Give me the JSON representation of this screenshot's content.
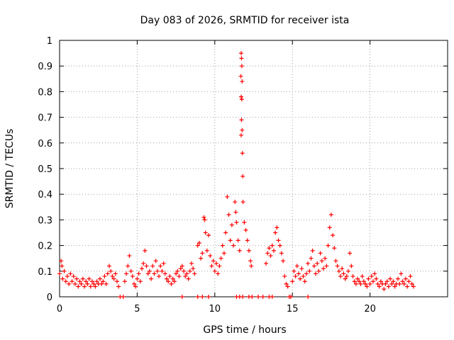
{
  "chart_data": {
    "type": "scatter",
    "title": "Day 083 of 2026, SRMTID for receiver ista",
    "xlabel": "GPS time / hours",
    "ylabel": "SRMTID / TECUs",
    "xlim": [
      0,
      25
    ],
    "ylim": [
      0,
      1
    ],
    "x_ticks": [
      0,
      5,
      10,
      15,
      20
    ],
    "x_tick_labels": [
      "0",
      "5",
      "10",
      "15",
      "20"
    ],
    "y_ticks": [
      0,
      0.1,
      0.2,
      0.3,
      0.4,
      0.5,
      0.6,
      0.7,
      0.8,
      0.9,
      1
    ],
    "y_tick_labels": [
      "0",
      "0.1",
      "0.2",
      "0.3",
      "0.4",
      "0.5",
      "0.6",
      "0.7",
      "0.8",
      "0.9",
      "1"
    ],
    "grid": true,
    "marker": "plus",
    "color": "#ff0000",
    "series": [
      {
        "name": "SRMTID",
        "points": [
          [
            0.0,
            0.09
          ],
          [
            0.1,
            0.14
          ],
          [
            0.15,
            0.12
          ],
          [
            0.2,
            0.07
          ],
          [
            0.3,
            0.1
          ],
          [
            0.4,
            0.06
          ],
          [
            0.5,
            0.08
          ],
          [
            0.6,
            0.05
          ],
          [
            0.7,
            0.09
          ],
          [
            0.8,
            0.06
          ],
          [
            0.9,
            0.08
          ],
          [
            1.0,
            0.05
          ],
          [
            1.1,
            0.07
          ],
          [
            1.2,
            0.04
          ],
          [
            1.3,
            0.06
          ],
          [
            1.4,
            0.05
          ],
          [
            1.5,
            0.07
          ],
          [
            1.6,
            0.04
          ],
          [
            1.7,
            0.06
          ],
          [
            1.8,
            0.05
          ],
          [
            1.9,
            0.07
          ],
          [
            2.0,
            0.04
          ],
          [
            2.1,
            0.06
          ],
          [
            2.2,
            0.05
          ],
          [
            2.3,
            0.04
          ],
          [
            2.4,
            0.06
          ],
          [
            2.5,
            0.05
          ],
          [
            2.6,
            0.07
          ],
          [
            2.7,
            0.05
          ],
          [
            2.8,
            0.06
          ],
          [
            2.9,
            0.08
          ],
          [
            3.0,
            0.05
          ],
          [
            3.1,
            0.09
          ],
          [
            3.2,
            0.12
          ],
          [
            3.3,
            0.1
          ],
          [
            3.4,
            0.08
          ],
          [
            3.5,
            0.07
          ],
          [
            3.6,
            0.09
          ],
          [
            3.7,
            0.06
          ],
          [
            3.8,
            0.04
          ],
          [
            4.2,
            0.06
          ],
          [
            4.3,
            0.09
          ],
          [
            4.4,
            0.12
          ],
          [
            4.5,
            0.16
          ],
          [
            4.6,
            0.1
          ],
          [
            4.7,
            0.08
          ],
          [
            4.8,
            0.05
          ],
          [
            4.9,
            0.04
          ],
          [
            5.0,
            0.07
          ],
          [
            5.1,
            0.09
          ],
          [
            5.2,
            0.06
          ],
          [
            5.3,
            0.11
          ],
          [
            5.4,
            0.13
          ],
          [
            5.5,
            0.18
          ],
          [
            5.6,
            0.12
          ],
          [
            5.7,
            0.09
          ],
          [
            5.8,
            0.1
          ],
          [
            5.9,
            0.07
          ],
          [
            6.0,
            0.12
          ],
          [
            6.1,
            0.09
          ],
          [
            6.2,
            0.14
          ],
          [
            6.3,
            0.1
          ],
          [
            6.4,
            0.08
          ],
          [
            6.5,
            0.12
          ],
          [
            6.6,
            0.1
          ],
          [
            6.7,
            0.13
          ],
          [
            6.8,
            0.09
          ],
          [
            6.9,
            0.07
          ],
          [
            7.0,
            0.06
          ],
          [
            7.1,
            0.08
          ],
          [
            7.2,
            0.05
          ],
          [
            7.3,
            0.07
          ],
          [
            7.4,
            0.06
          ],
          [
            7.5,
            0.09
          ],
          [
            7.6,
            0.1
          ],
          [
            7.7,
            0.08
          ],
          [
            7.8,
            0.11
          ],
          [
            7.9,
            0.12
          ],
          [
            8.0,
            0.1
          ],
          [
            8.1,
            0.08
          ],
          [
            8.2,
            0.09
          ],
          [
            8.3,
            0.07
          ],
          [
            8.4,
            0.1
          ],
          [
            8.5,
            0.13
          ],
          [
            8.6,
            0.11
          ],
          [
            8.7,
            0.09
          ],
          [
            8.9,
            0.2
          ],
          [
            9.0,
            0.21
          ],
          [
            9.1,
            0.15
          ],
          [
            9.2,
            0.17
          ],
          [
            9.3,
            0.31
          ],
          [
            9.35,
            0.3
          ],
          [
            9.4,
            0.25
          ],
          [
            9.5,
            0.18
          ],
          [
            9.6,
            0.24
          ],
          [
            9.7,
            0.16
          ],
          [
            9.8,
            0.12
          ],
          [
            9.9,
            0.14
          ],
          [
            10.0,
            0.1
          ],
          [
            10.1,
            0.13
          ],
          [
            10.2,
            0.09
          ],
          [
            10.3,
            0.12
          ],
          [
            10.4,
            0.15
          ],
          [
            10.5,
            0.2
          ],
          [
            10.6,
            0.17
          ],
          [
            10.7,
            0.25
          ],
          [
            10.8,
            0.39
          ],
          [
            10.9,
            0.32
          ],
          [
            11.0,
            0.22
          ],
          [
            11.1,
            0.28
          ],
          [
            11.2,
            0.2
          ],
          [
            11.3,
            0.37
          ],
          [
            11.35,
            0.33
          ],
          [
            11.4,
            0.29
          ],
          [
            11.5,
            0.22
          ],
          [
            11.6,
            0.18
          ],
          [
            11.7,
            0.95
          ],
          [
            11.72,
            0.93
          ],
          [
            11.74,
            0.9
          ],
          [
            11.68,
            0.86
          ],
          [
            11.76,
            0.84
          ],
          [
            11.7,
            0.78
          ],
          [
            11.74,
            0.77
          ],
          [
            11.72,
            0.69
          ],
          [
            11.76,
            0.65
          ],
          [
            11.7,
            0.63
          ],
          [
            11.78,
            0.56
          ],
          [
            11.8,
            0.47
          ],
          [
            11.82,
            0.37
          ],
          [
            11.9,
            0.29
          ],
          [
            12.0,
            0.26
          ],
          [
            12.1,
            0.22
          ],
          [
            12.2,
            0.18
          ],
          [
            12.3,
            0.14
          ],
          [
            12.35,
            0.12
          ],
          [
            13.3,
            0.13
          ],
          [
            13.4,
            0.17
          ],
          [
            13.5,
            0.19
          ],
          [
            13.6,
            0.16
          ],
          [
            13.7,
            0.2
          ],
          [
            13.8,
            0.18
          ],
          [
            13.9,
            0.25
          ],
          [
            14.0,
            0.27
          ],
          [
            14.1,
            0.22
          ],
          [
            14.2,
            0.2
          ],
          [
            14.3,
            0.17
          ],
          [
            14.4,
            0.14
          ],
          [
            14.5,
            0.08
          ],
          [
            14.6,
            0.05
          ],
          [
            14.7,
            0.04
          ],
          [
            15.0,
            0.06
          ],
          [
            15.1,
            0.1
          ],
          [
            15.2,
            0.08
          ],
          [
            15.3,
            0.12
          ],
          [
            15.4,
            0.09
          ],
          [
            15.5,
            0.07
          ],
          [
            15.6,
            0.11
          ],
          [
            15.7,
            0.08
          ],
          [
            15.8,
            0.06
          ],
          [
            15.9,
            0.09
          ],
          [
            16.0,
            0.13
          ],
          [
            16.1,
            0.1
          ],
          [
            16.2,
            0.15
          ],
          [
            16.3,
            0.18
          ],
          [
            16.4,
            0.12
          ],
          [
            16.5,
            0.09
          ],
          [
            16.6,
            0.13
          ],
          [
            16.7,
            0.1
          ],
          [
            16.8,
            0.17
          ],
          [
            16.9,
            0.14
          ],
          [
            17.0,
            0.11
          ],
          [
            17.1,
            0.15
          ],
          [
            17.2,
            0.12
          ],
          [
            17.3,
            0.2
          ],
          [
            17.4,
            0.27
          ],
          [
            17.5,
            0.32
          ],
          [
            17.6,
            0.24
          ],
          [
            17.7,
            0.19
          ],
          [
            17.8,
            0.14
          ],
          [
            17.9,
            0.12
          ],
          [
            18.0,
            0.1
          ],
          [
            18.1,
            0.08
          ],
          [
            18.2,
            0.11
          ],
          [
            18.3,
            0.09
          ],
          [
            18.4,
            0.07
          ],
          [
            18.5,
            0.08
          ],
          [
            18.6,
            0.1
          ],
          [
            18.7,
            0.17
          ],
          [
            18.8,
            0.12
          ],
          [
            18.9,
            0.08
          ],
          [
            19.0,
            0.06
          ],
          [
            19.1,
            0.05
          ],
          [
            19.2,
            0.07
          ],
          [
            19.3,
            0.06
          ],
          [
            19.4,
            0.05
          ],
          [
            19.5,
            0.08
          ],
          [
            19.6,
            0.06
          ],
          [
            19.7,
            0.05
          ],
          [
            19.8,
            0.04
          ],
          [
            19.9,
            0.07
          ],
          [
            20.0,
            0.05
          ],
          [
            20.1,
            0.08
          ],
          [
            20.2,
            0.06
          ],
          [
            20.3,
            0.09
          ],
          [
            20.4,
            0.07
          ],
          [
            20.5,
            0.05
          ],
          [
            20.6,
            0.04
          ],
          [
            20.7,
            0.06
          ],
          [
            20.8,
            0.05
          ],
          [
            20.9,
            0.03
          ],
          [
            21.0,
            0.05
          ],
          [
            21.1,
            0.06
          ],
          [
            21.2,
            0.04
          ],
          [
            21.3,
            0.07
          ],
          [
            21.4,
            0.05
          ],
          [
            21.5,
            0.06
          ],
          [
            21.6,
            0.04
          ],
          [
            21.7,
            0.05
          ],
          [
            21.8,
            0.07
          ],
          [
            21.9,
            0.05
          ],
          [
            22.0,
            0.09
          ],
          [
            22.1,
            0.06
          ],
          [
            22.2,
            0.05
          ],
          [
            22.3,
            0.07
          ],
          [
            22.4,
            0.04
          ],
          [
            22.5,
            0.06
          ],
          [
            22.6,
            0.08
          ],
          [
            22.7,
            0.05
          ],
          [
            22.8,
            0.04
          ],
          [
            3.9,
            0.0
          ],
          [
            4.1,
            0.0
          ],
          [
            7.9,
            0.0
          ],
          [
            8.9,
            0.0
          ],
          [
            9.2,
            0.0
          ],
          [
            9.6,
            0.0
          ],
          [
            11.4,
            0.0
          ],
          [
            11.6,
            0.0
          ],
          [
            11.8,
            0.0
          ],
          [
            12.2,
            0.0
          ],
          [
            12.4,
            0.0
          ],
          [
            12.8,
            0.0
          ],
          [
            13.1,
            0.0
          ],
          [
            13.5,
            0.0
          ],
          [
            13.7,
            0.0
          ],
          [
            14.8,
            0.0
          ],
          [
            14.9,
            0.0
          ],
          [
            16.0,
            0.0
          ]
        ]
      }
    ]
  }
}
